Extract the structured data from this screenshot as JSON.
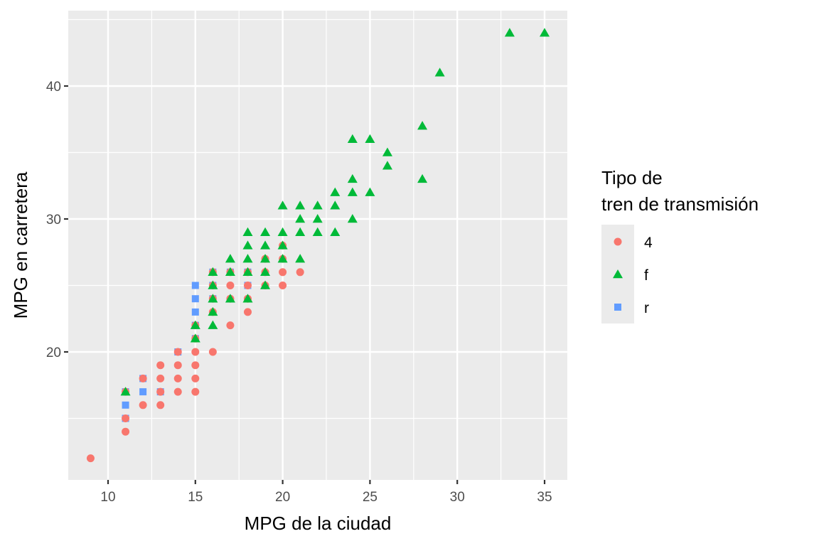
{
  "chart_data": {
    "type": "scatter",
    "title": "",
    "xlabel": "MPG de la ciudad",
    "ylabel": "MPG en carretera",
    "xlim": [
      7.7,
      36.3
    ],
    "ylim": [
      10.4,
      45.6
    ],
    "x_ticks": [
      10,
      15,
      20,
      25,
      30,
      35
    ],
    "y_ticks": [
      20,
      30,
      40
    ],
    "grid": true,
    "legend": {
      "title_lines": [
        "Tipo de",
        "tren de transmisión"
      ],
      "position": "right",
      "entries": [
        {
          "label": "4",
          "shape": "circle",
          "color": "#F8766D"
        },
        {
          "label": "f",
          "shape": "triangle",
          "color": "#00BA38"
        },
        {
          "label": "r",
          "shape": "square",
          "color": "#619CFF"
        }
      ]
    },
    "series": [
      {
        "name": "4",
        "shape": "circle",
        "color": "#F8766D",
        "points": [
          [
            9,
            12
          ],
          [
            11,
            14
          ],
          [
            11,
            15
          ],
          [
            11,
            17
          ],
          [
            12,
            16
          ],
          [
            12,
            18
          ],
          [
            13,
            16
          ],
          [
            13,
            17
          ],
          [
            13,
            18
          ],
          [
            13,
            19
          ],
          [
            14,
            17
          ],
          [
            14,
            18
          ],
          [
            14,
            19
          ],
          [
            14,
            20
          ],
          [
            15,
            17
          ],
          [
            15,
            18
          ],
          [
            15,
            19
          ],
          [
            15,
            20
          ],
          [
            16,
            20
          ],
          [
            16,
            25
          ],
          [
            16,
            26
          ],
          [
            17,
            22
          ],
          [
            17,
            25
          ],
          [
            17,
            26
          ],
          [
            18,
            23
          ],
          [
            18,
            24
          ],
          [
            18,
            25
          ],
          [
            18,
            26
          ],
          [
            19,
            25
          ],
          [
            19,
            26
          ],
          [
            19,
            27
          ],
          [
            20,
            25
          ],
          [
            20,
            26
          ],
          [
            20,
            27
          ],
          [
            20,
            28
          ],
          [
            21,
            26
          ],
          [
            16,
            23
          ],
          [
            16,
            24
          ],
          [
            17,
            24
          ],
          [
            15,
            22
          ],
          [
            15,
            21
          ]
        ]
      },
      {
        "name": "f",
        "shape": "triangle",
        "color": "#00BA38",
        "points": [
          [
            11,
            17
          ],
          [
            15,
            21
          ],
          [
            15,
            22
          ],
          [
            16,
            22
          ],
          [
            16,
            23
          ],
          [
            16,
            24
          ],
          [
            16,
            25
          ],
          [
            16,
            26
          ],
          [
            17,
            24
          ],
          [
            17,
            26
          ],
          [
            17,
            27
          ],
          [
            18,
            24
          ],
          [
            18,
            26
          ],
          [
            18,
            27
          ],
          [
            18,
            28
          ],
          [
            18,
            29
          ],
          [
            19,
            25
          ],
          [
            19,
            26
          ],
          [
            19,
            27
          ],
          [
            19,
            28
          ],
          [
            19,
            29
          ],
          [
            20,
            27
          ],
          [
            20,
            28
          ],
          [
            20,
            29
          ],
          [
            20,
            31
          ],
          [
            21,
            27
          ],
          [
            21,
            29
          ],
          [
            21,
            30
          ],
          [
            21,
            31
          ],
          [
            22,
            29
          ],
          [
            22,
            30
          ],
          [
            22,
            31
          ],
          [
            23,
            29
          ],
          [
            23,
            31
          ],
          [
            23,
            32
          ],
          [
            24,
            30
          ],
          [
            24,
            32
          ],
          [
            24,
            33
          ],
          [
            24,
            36
          ],
          [
            25,
            32
          ],
          [
            25,
            36
          ],
          [
            26,
            34
          ],
          [
            26,
            35
          ],
          [
            28,
            33
          ],
          [
            28,
            37
          ],
          [
            29,
            41
          ],
          [
            33,
            44
          ],
          [
            35,
            44
          ]
        ]
      },
      {
        "name": "r",
        "shape": "square",
        "color": "#619CFF",
        "points": [
          [
            11,
            15
          ],
          [
            11,
            16
          ],
          [
            11,
            17
          ],
          [
            12,
            17
          ],
          [
            12,
            18
          ],
          [
            13,
            17
          ],
          [
            14,
            20
          ],
          [
            15,
            21
          ],
          [
            15,
            22
          ],
          [
            15,
            23
          ],
          [
            15,
            24
          ],
          [
            15,
            25
          ],
          [
            16,
            24
          ],
          [
            16,
            25
          ],
          [
            16,
            26
          ],
          [
            17,
            26
          ],
          [
            18,
            25
          ],
          [
            18,
            26
          ]
        ]
      }
    ]
  }
}
